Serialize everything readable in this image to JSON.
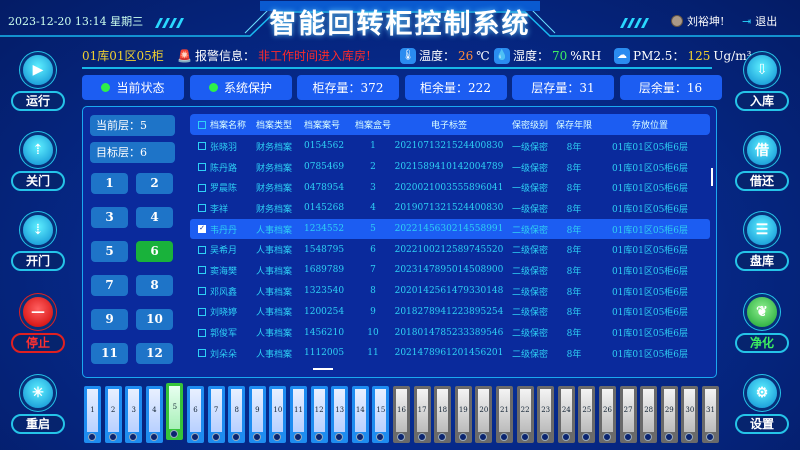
{
  "header": {
    "title": "智能回转柜控制系统",
    "datetime": "2023-12-20 13:14 星期三",
    "user": "刘裕坤!",
    "logout": "退出"
  },
  "info": {
    "location": "01库01区05柜",
    "alarm_label": "报警信息：",
    "alarm_text": "非工作时间进入库房!",
    "temp_label": "温度：",
    "temp_value": "26",
    "temp_unit": "℃",
    "humidity_label": "湿度：",
    "humidity_value": "70",
    "humidity_unit": "%RH",
    "pm_label": "PM2.5：",
    "pm_value": "125",
    "pm_unit": "Ug/m³",
    "colors": {
      "location": "#f0d030",
      "alarm": "#ff2a2a",
      "temp": "#ff8a3a",
      "humidity": "#3df060",
      "pm": "#f0d030"
    }
  },
  "status": [
    {
      "label": "当前状态",
      "dot": true
    },
    {
      "label": "系统保护",
      "dot": true
    },
    {
      "label": "柜存量：372"
    },
    {
      "label": "柜余量：222"
    },
    {
      "label": "层存量：31"
    },
    {
      "label": "层余量：16"
    }
  ],
  "levels": {
    "current": "当前层：5",
    "target": "目标层：6"
  },
  "floors": {
    "items": [
      "1",
      "2",
      "3",
      "4",
      "5",
      "6",
      "7",
      "8",
      "9",
      "10",
      "11",
      "12"
    ],
    "selected": "6"
  },
  "left_buttons": [
    {
      "label": "运行",
      "icon": "play-icon",
      "glyph": "▶"
    },
    {
      "label": "关门",
      "icon": "arrow-up-icon",
      "glyph": "⇡"
    },
    {
      "label": "开门",
      "icon": "arrow-down-icon",
      "glyph": "⇣"
    },
    {
      "label": "停止",
      "icon": "stop-icon",
      "glyph": "—",
      "style": "red"
    },
    {
      "label": "重启",
      "icon": "restart-icon",
      "glyph": "✳"
    }
  ],
  "right_buttons": [
    {
      "label": "入库",
      "icon": "inbox-icon",
      "glyph": "⇩"
    },
    {
      "label": "借还",
      "icon": "borrow-icon",
      "glyph": "借"
    },
    {
      "label": "盘库",
      "icon": "inventory-icon",
      "glyph": "☰"
    },
    {
      "label": "净化",
      "icon": "leaf-icon",
      "glyph": "❦",
      "style": "green"
    },
    {
      "label": "设置",
      "icon": "gear-icon",
      "glyph": "⚙"
    }
  ],
  "table": {
    "columns": [
      "档案名称",
      "档案类型",
      "档案案号",
      "档案盒号",
      "电子标签",
      "保密级别",
      "保存年限",
      "存放位置"
    ],
    "rows": [
      [
        "张晓羽",
        "财务档案",
        "0154562",
        "1",
        "2021071321524400830",
        "一级保密",
        "8年",
        "01库01区05柜6层"
      ],
      [
        "陈丹路",
        "财务档案",
        "0785469",
        "2",
        "2021589410142004789",
        "一级保密",
        "8年",
        "01库01区05柜6层"
      ],
      [
        "罗晨陈",
        "财务档案",
        "0478954",
        "3",
        "2020021003555896041",
        "一级保密",
        "8年",
        "01库01区05柜6层"
      ],
      [
        "李祥",
        "财务档案",
        "0145268",
        "4",
        "2019071321524400830",
        "一级保密",
        "8年",
        "01库01区05柜6层"
      ],
      [
        "韦丹丹",
        "人事档案",
        "1234552",
        "5",
        "2022145630214558991",
        "二级保密",
        "8年",
        "01库01区05柜6层"
      ],
      [
        "吴希月",
        "人事档案",
        "1548795",
        "6",
        "2022100212589745520",
        "二级保密",
        "8年",
        "01库01区05柜6层"
      ],
      [
        "窦海樊",
        "人事档案",
        "1689789",
        "7",
        "2023147895014508900",
        "二级保密",
        "8年",
        "01库01区05柜6层"
      ],
      [
        "邓风鑫",
        "人事档案",
        "1323540",
        "8",
        "2020142561479330148",
        "二级保密",
        "8年",
        "01库01区05柜6层"
      ],
      [
        "刘晓婷",
        "人事档案",
        "1200254",
        "9",
        "2018278941223895254",
        "二级保密",
        "8年",
        "01库01区05柜6层"
      ],
      [
        "郭俊军",
        "人事档案",
        "1456210",
        "10",
        "2018014785233389546",
        "二级保密",
        "8年",
        "01库01区05柜6层"
      ],
      [
        "刘朵朵",
        "人事档案",
        "1112005",
        "11",
        "2021478961201456201",
        "二级保密",
        "8年",
        "01库01区05柜6层"
      ]
    ],
    "selected_row": 4
  },
  "binders": {
    "count_labels": [
      "1",
      "2",
      "3",
      "4",
      "5",
      "6",
      "7",
      "8",
      "9",
      "10",
      "11",
      "12",
      "13",
      "14",
      "15",
      "16",
      "17",
      "18",
      "19",
      "20",
      "21",
      "22",
      "23",
      "24",
      "25",
      "26",
      "27",
      "28",
      "29",
      "30",
      "31"
    ],
    "active": "5",
    "unavailable_from": 16
  }
}
